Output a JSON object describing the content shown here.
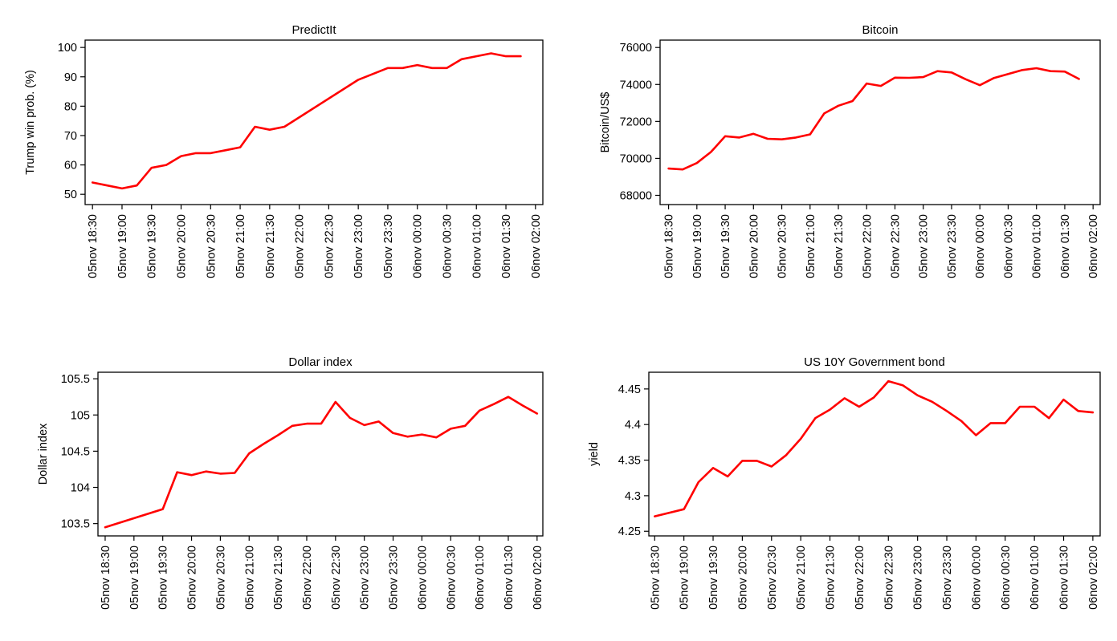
{
  "chart_data": [
    {
      "type": "line",
      "title": "PredictIt",
      "xlabel": "",
      "ylabel": "Trump win prob. (%)",
      "ylim": [
        46.5,
        102.5
      ],
      "yticks": [
        50,
        60,
        70,
        80,
        90,
        100
      ],
      "ytick_labels": [
        "50",
        "60",
        "70",
        "80",
        "90",
        "100"
      ],
      "xlim": [
        -0.25,
        15.25
      ],
      "xtick_labels": [
        "05nov 18:30",
        "05nov 19:00",
        "05nov 19:30",
        "05nov 20:00",
        "05nov 20:30",
        "05nov 21:00",
        "05nov 21:30",
        "05nov 22:00",
        "05nov 22:30",
        "05nov 23:00",
        "05nov 23:30",
        "06nov 00:00",
        "06nov 00:30",
        "06nov 01:00",
        "06nov 01:30",
        "06nov 02:00"
      ],
      "grid": false,
      "color": "#ff0000",
      "series": [
        {
          "x": [
            0,
            1,
            1.5,
            2,
            2.5,
            3,
            3.5,
            4,
            4.5,
            5,
            5.5,
            6,
            6.5,
            9,
            10,
            10.5,
            11,
            11.5,
            12,
            12.5,
            13,
            13.5,
            14,
            14.5
          ],
          "values": [
            54,
            52,
            53,
            59,
            60,
            63,
            64,
            64,
            65,
            66,
            73,
            72,
            73,
            89,
            93,
            93,
            94,
            93,
            93,
            96,
            97,
            98,
            97,
            97
          ]
        }
      ]
    },
    {
      "type": "line",
      "title": "Bitcoin",
      "xlabel": "",
      "ylabel": "Bitcoin/US$",
      "ylim": [
        67500,
        76400
      ],
      "yticks": [
        68000,
        70000,
        72000,
        74000,
        76000
      ],
      "ytick_labels": [
        "68000",
        "70000",
        "72000",
        "74000",
        "76000"
      ],
      "xlim": [
        -0.3,
        15.25
      ],
      "xtick_labels": [
        "05nov 18:30",
        "05nov 19:00",
        "05nov 19:30",
        "05nov 20:00",
        "05nov 20:30",
        "05nov 21:00",
        "05nov 21:30",
        "05nov 22:00",
        "05nov 22:30",
        "05nov 23:00",
        "05nov 23:30",
        "06nov 00:00",
        "06nov 00:30",
        "06nov 01:00",
        "06nov 01:30",
        "06nov 02:00"
      ],
      "grid": false,
      "color": "#ff0000",
      "series": [
        {
          "x": [
            0,
            0.5,
            1,
            1.5,
            2,
            2.5,
            3,
            3.5,
            4,
            4.5,
            5,
            5.5,
            6,
            6.5,
            7,
            7.5,
            8,
            8.5,
            9,
            9.5,
            10,
            10.5,
            11,
            11.5,
            12,
            12.5,
            13,
            13.5,
            14,
            14.5
          ],
          "values": [
            69450,
            69400,
            69750,
            70350,
            71200,
            71130,
            71330,
            71060,
            71030,
            71130,
            71300,
            72430,
            72850,
            73100,
            74050,
            73920,
            74370,
            74360,
            74400,
            74720,
            74650,
            74280,
            73960,
            74350,
            74570,
            74780,
            74880,
            74720,
            74700,
            74300
          ]
        }
      ]
    },
    {
      "type": "line",
      "title": "Dollar index",
      "xlabel": "",
      "ylabel": "Dollar index",
      "ylim": [
        103.33,
        105.59
      ],
      "yticks": [
        103.5,
        104,
        104.5,
        105,
        105.5
      ],
      "ytick_labels": [
        "103.5",
        "104",
        "104.5",
        "105",
        "105.5"
      ],
      "xlim": [
        -0.25,
        15.2
      ],
      "xtick_labels": [
        "05nov 18:30",
        "05nov 19:00",
        "05nov 19:30",
        "05nov 20:00",
        "05nov 20:30",
        "05nov 21:00",
        "05nov 21:30",
        "05nov 22:00",
        "05nov 22:30",
        "05nov 23:00",
        "05nov 23:30",
        "06nov 00:00",
        "06nov 00:30",
        "06nov 01:00",
        "06nov 01:30",
        "06nov 02:00"
      ],
      "grid": false,
      "color": "#ff0000",
      "series": [
        {
          "x": [
            0,
            2,
            2.5,
            3,
            3.5,
            4,
            4.5,
            5,
            5.5,
            6,
            6.5,
            7,
            7.5,
            8,
            8.5,
            9,
            9.5,
            10,
            10.5,
            11,
            11.5,
            12,
            12.5,
            13,
            13.5,
            14,
            14.5,
            15
          ],
          "values": [
            103.45,
            103.7,
            104.21,
            104.17,
            104.22,
            104.19,
            104.2,
            104.47,
            104.6,
            104.72,
            104.85,
            104.88,
            104.88,
            105.18,
            104.96,
            104.86,
            104.91,
            104.75,
            104.7,
            104.73,
            104.69,
            104.81,
            104.85,
            105.06,
            105.15,
            105.25,
            105.13,
            105.02
          ]
        }
      ]
    },
    {
      "type": "line",
      "title": "US 10Y Government bond",
      "xlabel": "",
      "ylabel": "yield",
      "ylim": [
        4.2435,
        4.4735
      ],
      "yticks": [
        4.25,
        4.3,
        4.35,
        4.4,
        4.45
      ],
      "ytick_labels": [
        "4.25",
        "4.3",
        "4.35",
        "4.4",
        "4.45"
      ],
      "xlim": [
        -0.2,
        15.25
      ],
      "xtick_labels": [
        "05nov 18:30",
        "05nov 19:00",
        "05nov 19:30",
        "05nov 20:00",
        "05nov 20:30",
        "05nov 21:00",
        "05nov 21:30",
        "05nov 22:00",
        "05nov 22:30",
        "05nov 23:00",
        "05nov 23:30",
        "06nov 00:00",
        "06nov 00:30",
        "06nov 01:00",
        "06nov 01:30",
        "06nov 02:00"
      ],
      "grid": false,
      "color": "#ff0000",
      "series": [
        {
          "x": [
            0,
            1,
            1.5,
            2,
            2.5,
            3,
            3.5,
            4,
            4.5,
            5,
            5.5,
            6,
            6.5,
            7,
            7.5,
            8,
            8.5,
            9,
            9.5,
            10,
            10.5,
            11,
            11.5,
            12,
            12.5,
            13,
            13.5,
            14,
            14.5,
            15
          ],
          "values": [
            4.271,
            4.281,
            4.319,
            4.339,
            4.327,
            4.349,
            4.349,
            4.341,
            4.357,
            4.38,
            4.409,
            4.421,
            4.437,
            4.425,
            4.438,
            4.461,
            4.455,
            4.441,
            4.432,
            4.419,
            4.405,
            4.385,
            4.402,
            4.402,
            4.425,
            4.425,
            4.409,
            4.435,
            4.419,
            4.417
          ]
        }
      ]
    }
  ]
}
